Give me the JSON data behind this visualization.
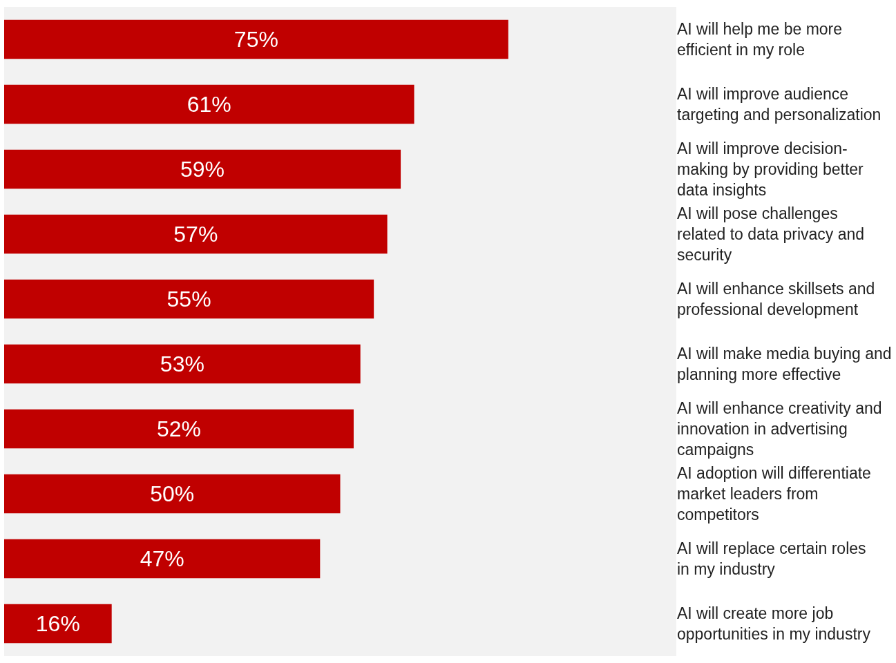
{
  "chart_data": {
    "type": "bar",
    "orientation": "horizontal",
    "categories": [
      "AI will help me be more efficient in my role",
      "AI will improve audience targeting and personalization",
      "AI will improve decision-making by providing better data insights",
      "AI will pose challenges related to data privacy and security",
      "AI will enhance skillsets and professional development",
      "AI will make media buying and planning more effective",
      "AI will enhance creativity and innovation in advertising campaigns",
      "AI adoption will differentiate market leaders from competitors",
      "AI will replace certain roles in my industry",
      "AI will create more job opportunities in my industry"
    ],
    "values": [
      75,
      61,
      59,
      57,
      55,
      53,
      52,
      50,
      47,
      16
    ],
    "value_labels": [
      "75%",
      "61%",
      "59%",
      "57%",
      "55%",
      "53%",
      "52%",
      "50%",
      "47%",
      "16%"
    ],
    "color": "#c00000",
    "xlim": [
      0,
      100
    ],
    "tick_labels": "y",
    "grid": false,
    "legend": false
  }
}
